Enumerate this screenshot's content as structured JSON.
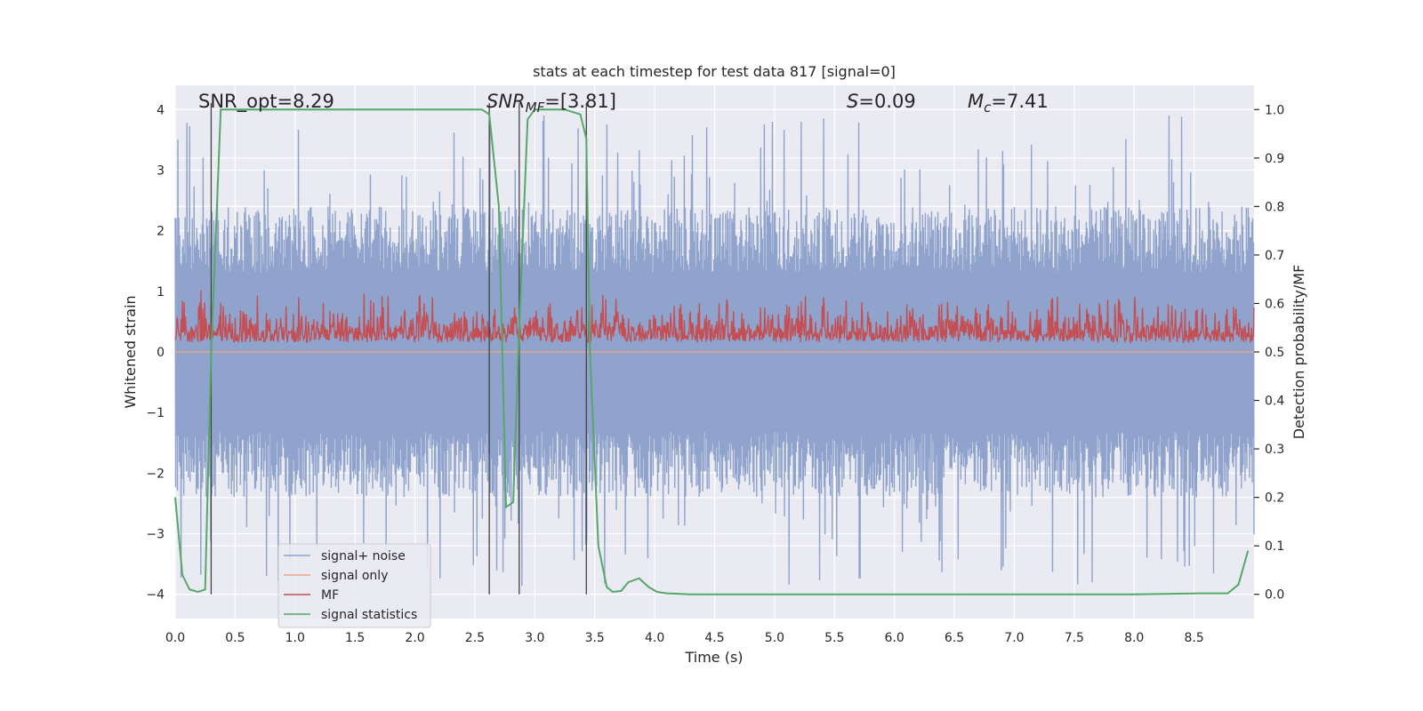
{
  "chart_data": {
    "type": "line",
    "title": "stats at each timestep for test data 817 [signal=0]",
    "xlabel": "Time (s)",
    "ylabel": "Whitened strain",
    "y2label": "Detection probability/MF",
    "xlim": [
      0,
      9.0
    ],
    "ylim": [
      -4.4,
      4.4
    ],
    "y2lim": [
      -0.05,
      1.05
    ],
    "x_ticks": [
      0.0,
      0.5,
      1.0,
      1.5,
      2.0,
      2.5,
      3.0,
      3.5,
      4.0,
      4.5,
      5.0,
      5.5,
      6.0,
      6.5,
      7.0,
      7.5,
      8.0,
      8.5
    ],
    "y_ticks": [
      -4,
      -3,
      -2,
      -1,
      0,
      1,
      2,
      3,
      4
    ],
    "y2_ticks": [
      0.0,
      0.1,
      0.2,
      0.3,
      0.4,
      0.5,
      0.6,
      0.7,
      0.8,
      0.9,
      1.0
    ],
    "grid": true,
    "legend_position": "lower-left",
    "annotations": [
      {
        "text": "SNR_opt=8.29",
        "x": 0.2,
        "y": 4.0
      },
      {
        "text": "SNR_MF=[3.81]",
        "x": 2.6,
        "y": 4.0
      },
      {
        "text": "S=0.09",
        "x": 5.6,
        "y": 4.0
      },
      {
        "text": "M_c=7.41",
        "x": 6.6,
        "y": 4.0
      }
    ],
    "vlines": [
      0.3,
      2.62,
      2.87,
      3.43
    ],
    "series": [
      {
        "name": "signal+ noise",
        "color": "#8fa3cc",
        "style": "dense-noise",
        "envelope_typical": 2.4,
        "envelope_peak": 3.9,
        "sample_rate_hz": 2048
      },
      {
        "name": "signal only",
        "color": "#e8a882",
        "style": "line",
        "x": [
          0.0,
          9.0
        ],
        "y": [
          0.0,
          0.0
        ]
      },
      {
        "name": "MF",
        "color": "#c44e52",
        "style": "dense-noise",
        "y2_baseline": 0.5,
        "y2_peak": 0.62
      },
      {
        "name": "signal statistics",
        "color": "#55a868",
        "style": "line",
        "x": [
          0.0,
          0.06,
          0.12,
          0.19,
          0.25,
          0.3,
          0.38,
          0.5,
          1.0,
          1.5,
          2.0,
          2.5,
          2.56,
          2.62,
          2.7,
          2.76,
          2.82,
          2.87,
          2.94,
          3.0,
          3.25,
          3.38,
          3.43,
          3.46,
          3.53,
          3.6,
          3.65,
          3.72,
          3.78,
          3.87,
          3.95,
          4.02,
          4.1,
          4.3,
          5.0,
          6.0,
          7.0,
          8.0,
          8.55,
          8.78,
          8.87,
          8.95
        ],
        "y": [
          0.2,
          0.04,
          0.01,
          0.005,
          0.01,
          0.5,
          1.0,
          1.0,
          1.0,
          1.0,
          1.0,
          1.0,
          1.0,
          0.99,
          0.8,
          0.18,
          0.19,
          0.55,
          0.98,
          1.0,
          1.0,
          0.99,
          0.94,
          0.5,
          0.1,
          0.015,
          0.005,
          0.007,
          0.025,
          0.033,
          0.015,
          0.005,
          0.002,
          0.0,
          0.0,
          0.0,
          0.0,
          0.0,
          0.002,
          0.002,
          0.02,
          0.09
        ]
      }
    ]
  }
}
